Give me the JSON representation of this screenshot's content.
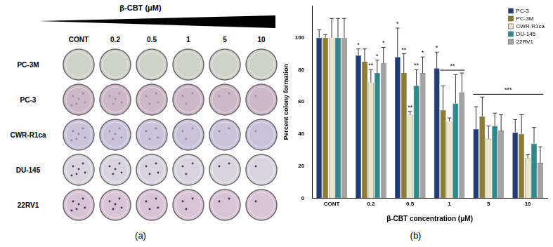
{
  "figure_a": {
    "label": "(a)",
    "title": "β-CBT (μM)",
    "concentrations": [
      "CONT",
      "0.2",
      "0.5",
      "1",
      "5",
      "10"
    ],
    "cell_lines": [
      "PC-3M",
      "PC-3",
      "CWR-R1ca",
      "DU-145",
      "22RV1"
    ]
  },
  "figure_b_label": "(b)",
  "chart_data": {
    "type": "bar",
    "x_label": "β-CBT concentration (μM)",
    "y_label": "Percent colony formation",
    "categories": [
      "CONT",
      "0.2",
      "0.5",
      "1",
      "5",
      "10"
    ],
    "series": [
      {
        "name": "PC-3",
        "color": "#1f3b7a",
        "values": [
          100,
          89,
          88,
          81,
          43,
          41
        ],
        "errors": [
          5,
          4,
          18,
          10,
          14,
          8
        ]
      },
      {
        "name": "PC-3M",
        "color": "#8c7d32",
        "values": [
          100,
          85,
          78,
          55,
          51,
          40
        ],
        "errors": [
          2,
          8,
          12,
          15,
          12,
          12
        ]
      },
      {
        "name": "CWR-R1ca",
        "color": "#ebe6c8",
        "values": [
          100,
          72,
          52,
          48,
          37,
          25
        ],
        "errors": [
          12,
          8,
          2,
          2,
          8,
          2
        ]
      },
      {
        "name": "DU-145",
        "color": "#2b8a8c",
        "values": [
          100,
          78,
          70,
          59,
          45,
          34
        ],
        "errors": [
          12,
          8,
          10,
          18,
          8,
          10
        ]
      },
      {
        "name": "22RV1",
        "color": "#a3a3a3",
        "values": [
          100,
          84,
          78,
          66,
          42,
          22
        ],
        "errors": [
          12,
          10,
          10,
          12,
          10,
          10
        ]
      }
    ],
    "ylim": [
      0,
      120
    ],
    "yticks": [
      0,
      20,
      40,
      60,
      80,
      100
    ],
    "grid": false,
    "legend": "upper right",
    "annotations": [
      {
        "text": "*",
        "category": "0.2",
        "series": "PC-3"
      },
      {
        "text": "**",
        "category": "0.2",
        "series": "CWR-R1ca"
      },
      {
        "text": "*",
        "category": "0.2",
        "series": "DU-145"
      },
      {
        "text": "*",
        "category": "0.2",
        "series": "22RV1"
      },
      {
        "text": "*",
        "category": "0.5",
        "series": "PC-3"
      },
      {
        "text": "**",
        "category": "0.5",
        "series": "PC-3M"
      },
      {
        "text": "**",
        "category": "0.5",
        "series": "CWR-R1ca"
      },
      {
        "text": "**",
        "category": "0.5",
        "series": "DU-145"
      },
      {
        "text": "*",
        "category": "0.5",
        "series": "22RV1"
      },
      {
        "text": "*",
        "category": "1",
        "series": "PC-3"
      }
    ],
    "brackets": [
      {
        "text": "**",
        "from": {
          "category": "1",
          "series": "PC-3M"
        },
        "to": {
          "category": "1",
          "series": "22RV1"
        }
      },
      {
        "text": "***",
        "from": {
          "category": "5",
          "series": "PC-3"
        },
        "to": {
          "category": "10",
          "series": "22RV1"
        }
      }
    ]
  }
}
